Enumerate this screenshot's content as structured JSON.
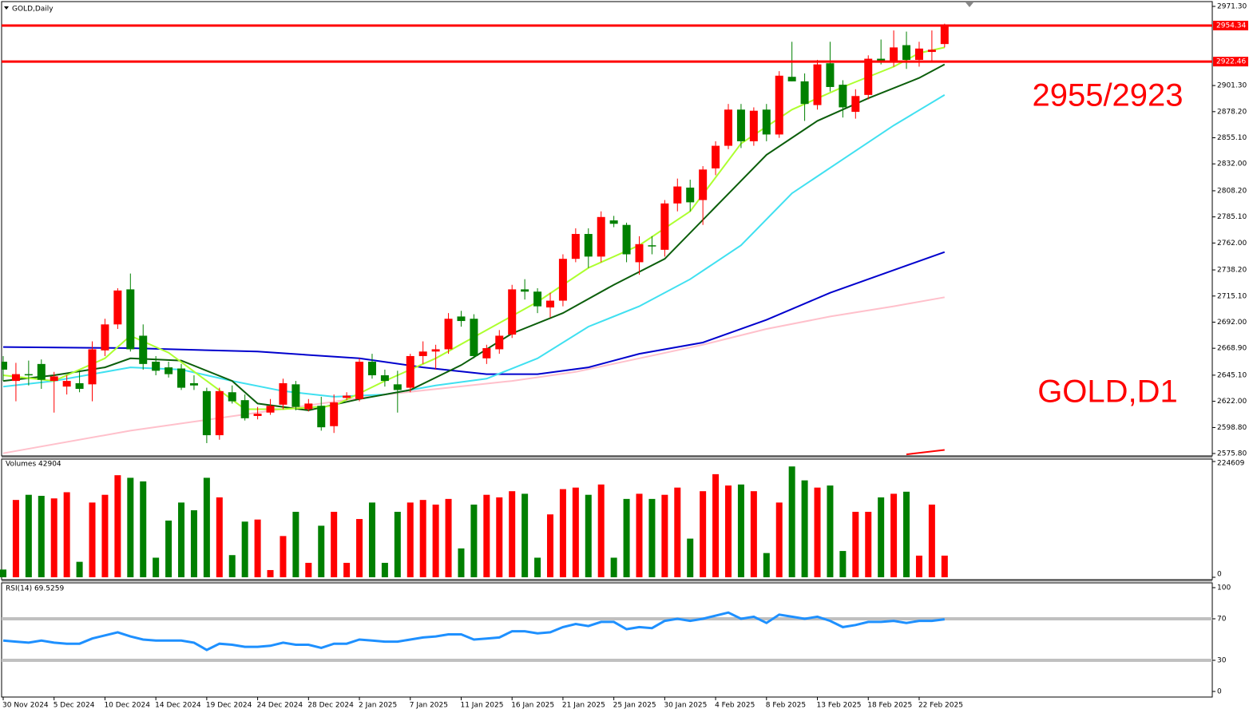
{
  "chart_data": {
    "type": "candlestick",
    "title": "GOLD,Daily",
    "categories": [
      "30 Nov 2024",
      null,
      null,
      null,
      "5 Dec 2024",
      null,
      null,
      null,
      "10 Dec 2024",
      null,
      null,
      null,
      "14 Dec 2024",
      null,
      null,
      null,
      "19 Dec 2024",
      null,
      null,
      null,
      "24 Dec 2024",
      null,
      null,
      null,
      "28 Dec 2024",
      null,
      null,
      null,
      "2 Jan 2025",
      null,
      null,
      null,
      "7 Jan 2025",
      null,
      null,
      null,
      "11 Jan 2025",
      null,
      null,
      null,
      "16 Jan 2025",
      null,
      null,
      null,
      "21 Jan 2025",
      null,
      null,
      null,
      "25 Jan 2025",
      null,
      null,
      null,
      "30 Jan 2025",
      null,
      null,
      null,
      "4 Feb 2025",
      null,
      null,
      null,
      "8 Feb 2025",
      null,
      null,
      null,
      "13 Feb 2025",
      null,
      null,
      null,
      "18 Feb 2025",
      null,
      null,
      null,
      "22 Feb 2025",
      null,
      null
    ],
    "open": [
      2657,
      2640,
      2646,
      2655,
      2640,
      2635,
      2638,
      2637,
      2667,
      2690,
      2721,
      2680,
      2657,
      2652,
      2651,
      2638,
      2631,
      2592,
      2630,
      2623,
      2609,
      2612,
      2619,
      2637,
      2615,
      2618,
      2600,
      2625,
      2624,
      2657,
      2645,
      2637,
      2634,
      2662,
      2666,
      2668,
      2697,
      2695,
      2660,
      2668,
      2681,
      2721,
      2719,
      2705,
      2711,
      2748,
      2770,
      2750,
      2782,
      2778,
      2745,
      2760,
      2756,
      2797,
      2811,
      2800,
      2828,
      2848,
      2880,
      2852,
      2880,
      2858,
      2909,
      2905,
      2884,
      2921,
      2902,
      2878,
      2893,
      2925,
      2922,
      2937,
      2924,
      2931,
      2938
    ],
    "high": [
      2662,
      2656,
      2658,
      2659,
      2648,
      2645,
      2648,
      2675,
      2695,
      2722,
      2735,
      2690,
      2662,
      2657,
      2655,
      2645,
      2634,
      2634,
      2636,
      2628,
      2617,
      2624,
      2642,
      2640,
      2624,
      2626,
      2628,
      2630,
      2660,
      2664,
      2650,
      2649,
      2664,
      2675,
      2672,
      2700,
      2702,
      2699,
      2672,
      2685,
      2725,
      2730,
      2722,
      2718,
      2752,
      2775,
      2775,
      2790,
      2786,
      2780,
      2768,
      2768,
      2800,
      2819,
      2818,
      2830,
      2852,
      2885,
      2885,
      2882,
      2885,
      2914,
      2940,
      2912,
      2924,
      2940,
      2906,
      2898,
      2928,
      2942,
      2950,
      2949,
      2940,
      2950,
      2956
    ],
    "low": [
      2640,
      2622,
      2636,
      2633,
      2612,
      2628,
      2630,
      2622,
      2662,
      2686,
      2666,
      2650,
      2645,
      2643,
      2632,
      2632,
      2585,
      2588,
      2620,
      2605,
      2606,
      2610,
      2615,
      2614,
      2613,
      2596,
      2594,
      2623,
      2622,
      2642,
      2635,
      2612,
      2630,
      2655,
      2650,
      2664,
      2688,
      2660,
      2655,
      2664,
      2678,
      2712,
      2700,
      2696,
      2706,
      2745,
      2740,
      2745,
      2776,
      2745,
      2734,
      2752,
      2750,
      2790,
      2790,
      2778,
      2822,
      2845,
      2846,
      2848,
      2852,
      2855,
      2905,
      2870,
      2880,
      2896,
      2873,
      2872,
      2889,
      2920,
      2918,
      2916,
      2918,
      2922,
      2935
    ],
    "close": [
      2650,
      2646,
      2645,
      2641,
      2644,
      2640,
      2633,
      2668,
      2690,
      2720,
      2668,
      2655,
      2649,
      2646,
      2634,
      2636,
      2592,
      2631,
      2622,
      2607,
      2611,
      2618,
      2638,
      2617,
      2620,
      2599,
      2621,
      2627,
      2657,
      2645,
      2640,
      2632,
      2662,
      2666,
      2668,
      2695,
      2693,
      2662,
      2669,
      2680,
      2721,
      2719,
      2706,
      2711,
      2748,
      2770,
      2750,
      2785,
      2779,
      2752,
      2761,
      2759,
      2797,
      2812,
      2798,
      2827,
      2848,
      2880,
      2852,
      2879,
      2858,
      2910,
      2905,
      2885,
      2920,
      2900,
      2882,
      2892,
      2925,
      2923,
      2935,
      2924,
      2934,
      2933,
      2954
    ],
    "up_color": "#ff0000",
    "down_color": "#008000",
    "ylim": [
      2575.8,
      2971.3
    ],
    "yticks": [
      {
        "value": 2971.3,
        "label": "2971.30"
      },
      {
        "value": 2901.3,
        "label": "2901.30"
      },
      {
        "value": 2878.2,
        "label": "2878.20"
      },
      {
        "value": 2855.1,
        "label": "2855.10"
      },
      {
        "value": 2832,
        "label": "2832.00"
      },
      {
        "value": 2808.2,
        "label": "2808.20"
      },
      {
        "value": 2785.1,
        "label": "2785.10"
      },
      {
        "value": 2762,
        "label": "2762.00"
      },
      {
        "value": 2738.2,
        "label": "2738.20"
      },
      {
        "value": 2715.1,
        "label": "2715.10"
      },
      {
        "value": 2692,
        "label": "2692.00"
      },
      {
        "value": 2668.9,
        "label": "2668.90"
      },
      {
        "value": 2645.1,
        "label": "2645.10"
      },
      {
        "value": 2622,
        "label": "2622.00"
      },
      {
        "value": 2598.8,
        "label": "2598.80"
      },
      {
        "value": 2575.8,
        "label": "2575.80"
      }
    ],
    "levels": [
      2954.34,
      2922.46
    ],
    "level_color": "#ff0000",
    "moving_averages": [
      {
        "color": "#ffc0cb",
        "x": [
          0,
          10,
          20,
          30,
          40,
          45,
          50,
          55,
          60,
          65,
          70,
          74
        ],
        "values": [
          2576,
          2596,
          2612,
          2628,
          2640,
          2648,
          2660,
          2672,
          2686,
          2697,
          2706,
          2714
        ]
      },
      {
        "color": "#0000cd",
        "x": [
          0,
          10,
          20,
          28,
          33,
          38,
          42,
          46,
          50,
          55,
          60,
          65,
          70,
          74
        ],
        "values": [
          2670,
          2669,
          2666,
          2660,
          2652,
          2646,
          2646,
          2652,
          2664,
          2674,
          2694,
          2718,
          2738,
          2754
        ]
      },
      {
        "color": "#40e0f0",
        "x": [
          0,
          4,
          10,
          14,
          18,
          22,
          26,
          30,
          34,
          38,
          42,
          46,
          50,
          54,
          58,
          62,
          66,
          70,
          74
        ],
        "values": [
          2635,
          2640,
          2652,
          2650,
          2640,
          2631,
          2626,
          2628,
          2636,
          2642,
          2660,
          2688,
          2706,
          2730,
          2760,
          2806,
          2836,
          2866,
          2893
        ]
      },
      {
        "color": "#0b5e0b",
        "x": [
          0,
          4,
          8,
          10,
          14,
          18,
          20,
          24,
          28,
          32,
          36,
          40,
          44,
          48,
          52,
          56,
          60,
          64,
          68,
          72,
          74
        ],
        "values": [
          2640,
          2645,
          2652,
          2660,
          2658,
          2640,
          2620,
          2614,
          2624,
          2632,
          2654,
          2682,
          2700,
          2725,
          2748,
          2794,
          2840,
          2870,
          2890,
          2908,
          2920
        ]
      },
      {
        "color": "#adff2f",
        "x": [
          0,
          4,
          8,
          10,
          13,
          16,
          19,
          22,
          26,
          30,
          34,
          38,
          42,
          46,
          50,
          54,
          58,
          62,
          66,
          70,
          72,
          74
        ],
        "values": [
          2645,
          2640,
          2660,
          2680,
          2665,
          2640,
          2615,
          2615,
          2618,
          2640,
          2660,
          2685,
          2710,
          2740,
          2760,
          2790,
          2850,
          2880,
          2900,
          2918,
          2930,
          2935
        ]
      },
      {
        "color": "#ff0000",
        "x": [
          71,
          74
        ],
        "values": [
          2575,
          2579
        ]
      }
    ],
    "annotations": [
      "2955/2923",
      "GOLD,D1"
    ],
    "volume": {
      "label": "Volumes 42904",
      "ylim": [
        0,
        224609
      ],
      "yticks": [
        0,
        224609
      ],
      "values": [
        15000,
        150000,
        160000,
        158000,
        153000,
        165000,
        30000,
        145000,
        160000,
        198000,
        193000,
        186000,
        38000,
        110000,
        145000,
        130000,
        193000,
        155000,
        43000,
        108000,
        112000,
        14000,
        80000,
        127000,
        28000,
        100000,
        127000,
        28000,
        113000,
        145000,
        28000,
        127000,
        145000,
        150000,
        141000,
        152000,
        56000,
        141000,
        160000,
        155000,
        167000,
        162000,
        38000,
        122000,
        171000,
        174000,
        160000,
        180000,
        38000,
        152000,
        162000,
        152000,
        160000,
        174000,
        75000,
        167000,
        200000,
        178000,
        180000,
        167000,
        47000,
        145000,
        215000,
        188000,
        174000,
        178000,
        51000,
        127000,
        127000,
        155000,
        162000,
        166000,
        42000,
        141000,
        42000
      ]
    },
    "rsi": {
      "label": "RSI(14) 69.5259",
      "color": "#1e90ff",
      "ylim": [
        0,
        100
      ],
      "yticks": [
        0,
        30,
        70,
        100
      ],
      "levels": [
        30,
        70
      ],
      "values": [
        49,
        48,
        47,
        49,
        47,
        46,
        46,
        51,
        54,
        57,
        53,
        50,
        49,
        49,
        49,
        47,
        40,
        46,
        45,
        43,
        43,
        44,
        47,
        45,
        45,
        42,
        46,
        46,
        50,
        49,
        48,
        48,
        50,
        52,
        53,
        55,
        55,
        50,
        51,
        52,
        58,
        58,
        56,
        57,
        62,
        65,
        63,
        67,
        67,
        60,
        62,
        61,
        68,
        70,
        68,
        70,
        73,
        76,
        70,
        72,
        66,
        74,
        72,
        70,
        72,
        68,
        62,
        64,
        67,
        67,
        68,
        66,
        68,
        68,
        69.5259
      ]
    }
  }
}
